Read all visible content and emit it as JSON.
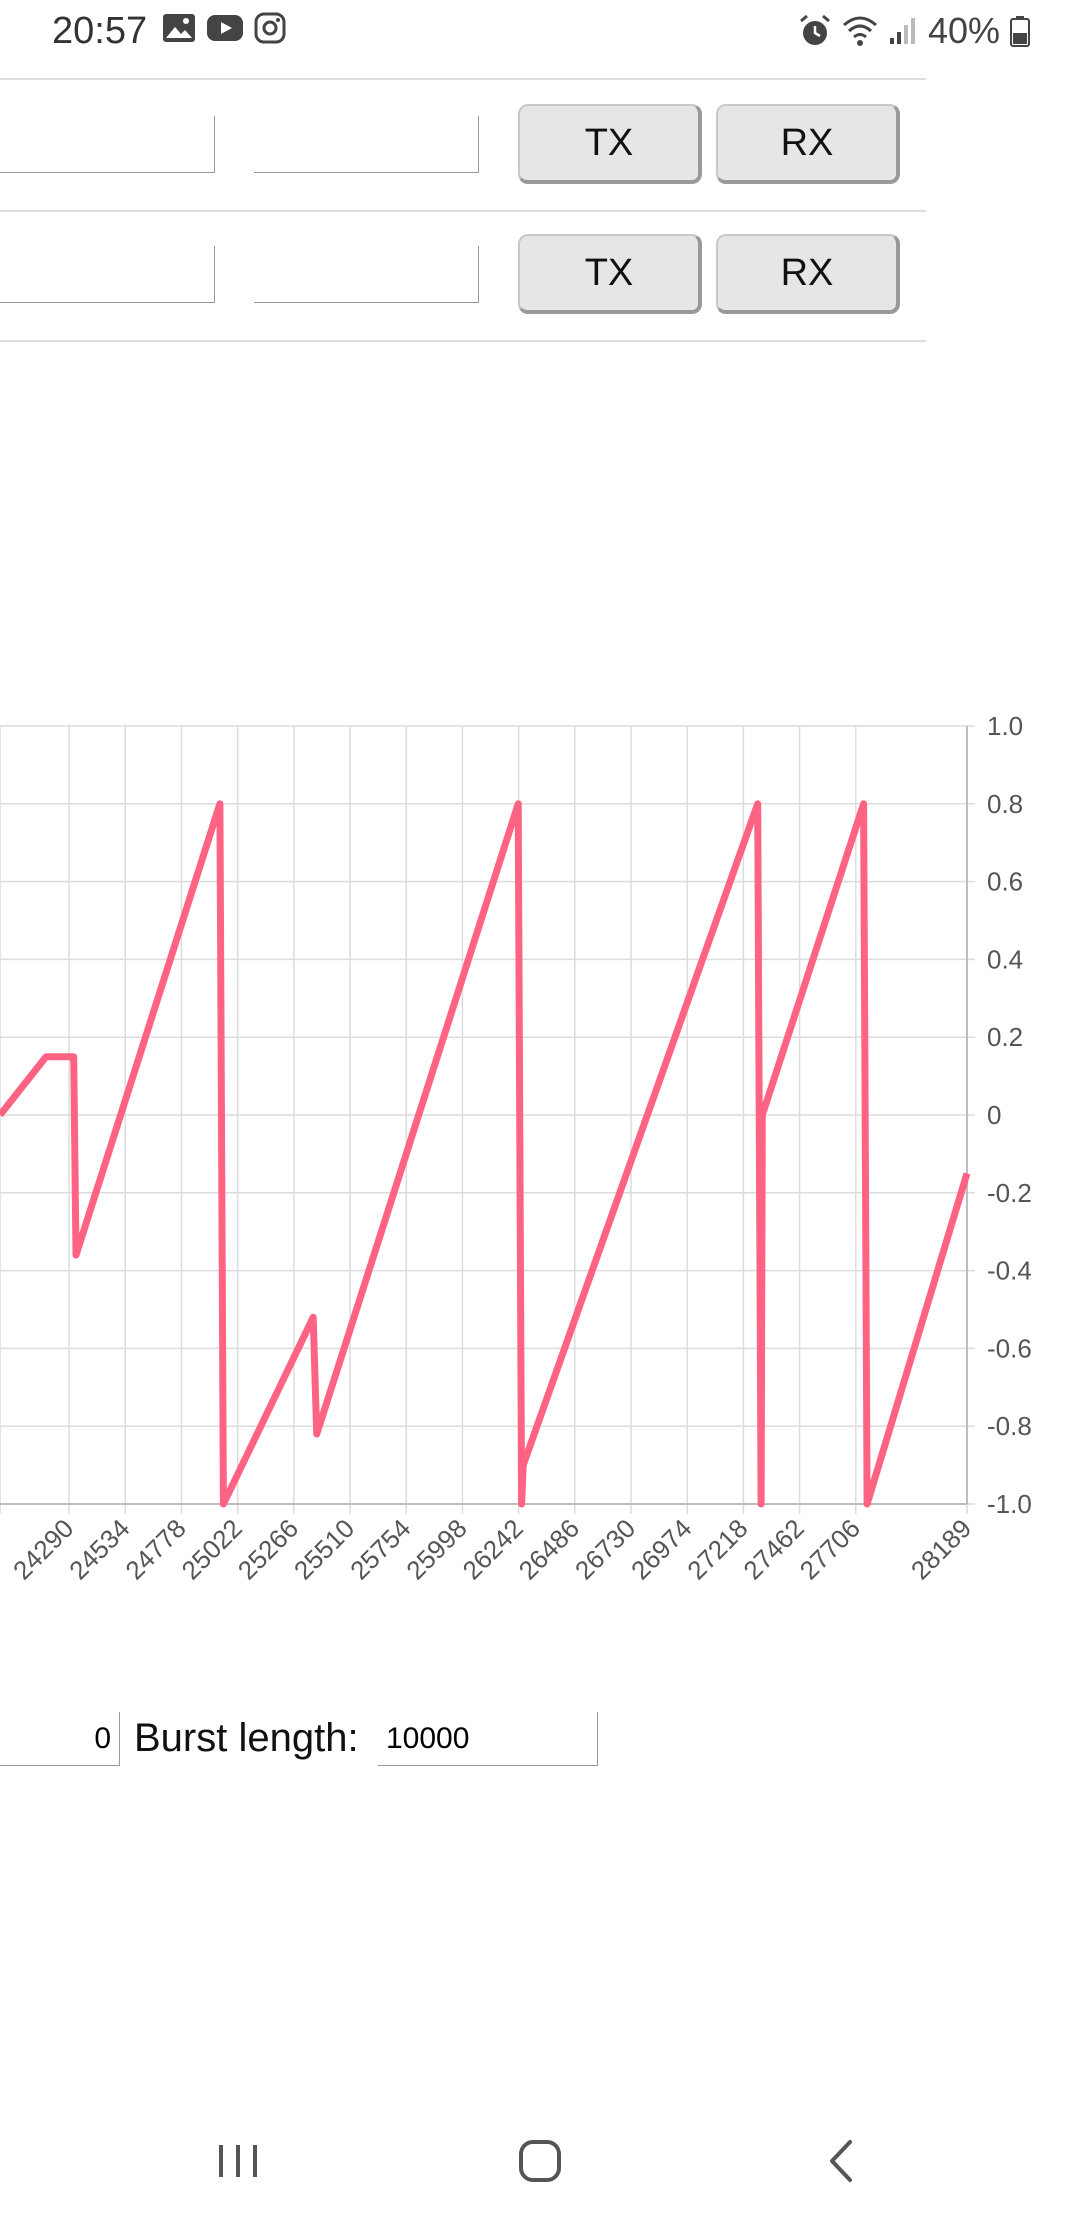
{
  "status_bar": {
    "time": "20:57",
    "battery": "40%",
    "left_icons": [
      "gallery-icon",
      "youtube-icon",
      "instagram-icon"
    ],
    "right_icons": [
      "alarm-icon",
      "wifi-icon",
      "signal-icon",
      "battery-icon"
    ]
  },
  "rows": [
    {
      "input_a": "",
      "input_b": "",
      "tx_label": "TX",
      "rx_label": "RX"
    },
    {
      "input_a": "",
      "input_b": "",
      "tx_label": "TX",
      "rx_label": "RX"
    }
  ],
  "chart_data": {
    "type": "line",
    "line_color": "#ff6384",
    "grid": true,
    "ylim": [
      -1.0,
      1.0
    ],
    "yticks": [
      "1.0",
      "0.8",
      "0.6",
      "0.4",
      "0.2",
      "0",
      "-0.2",
      "-0.4",
      "-0.6",
      "-0.8",
      "-1.0"
    ],
    "xticks": [
      "24290",
      "24534",
      "24778",
      "25022",
      "25266",
      "25510",
      "25754",
      "25998",
      "26242",
      "26486",
      "26730",
      "26974",
      "27218",
      "27462",
      "27706",
      "28189"
    ],
    "x": [
      23990,
      24190,
      24310,
      24320,
      24945,
      24960,
      25350,
      25365,
      26240,
      26255,
      26262,
      27280,
      27295,
      27300,
      27740,
      27755,
      28189
    ],
    "y": [
      0.0,
      0.15,
      0.15,
      -0.36,
      0.8,
      -1.0,
      -0.52,
      -0.82,
      0.8,
      -1.0,
      -0.9,
      0.8,
      -1.0,
      0.0,
      0.8,
      -1.0,
      -0.15
    ]
  },
  "controls": {
    "first_input_value": "0",
    "burst_label": "Burst length:",
    "burst_value": "10000"
  },
  "nav": {
    "recents_icon": "recents-icon",
    "home_icon": "home-icon",
    "back_icon": "back-icon"
  }
}
